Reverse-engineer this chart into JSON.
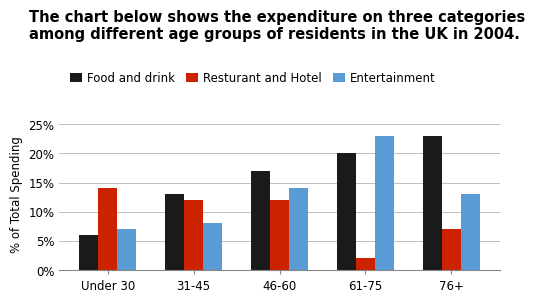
{
  "title_line1": "The chart below shows the expenditure on three categories",
  "title_line2": "among different age groups of residents in the UK in 2004.",
  "categories": [
    "Under 30",
    "31-45",
    "46-60",
    "61-75",
    "76+"
  ],
  "series": [
    {
      "label": "Food and drink",
      "color": "#1a1a1a",
      "values": [
        6,
        13,
        17,
        20,
        23
      ]
    },
    {
      "label": "Resturant and Hotel",
      "color": "#cc2200",
      "values": [
        14,
        12,
        12,
        2,
        7
      ]
    },
    {
      "label": "Entertainment",
      "color": "#5b9bd5",
      "values": [
        7,
        8,
        14,
        23,
        13
      ]
    }
  ],
  "ylabel": "% of Total Spending",
  "ylim": [
    0,
    26
  ],
  "yticks": [
    0,
    5,
    10,
    15,
    20,
    25
  ],
  "ytick_labels": [
    "0%",
    "5%",
    "10%",
    "15%",
    "20%",
    "25%"
  ],
  "background_color": "#ffffff",
  "title_fontsize": 10.5,
  "legend_fontsize": 8.5,
  "axis_fontsize": 8.5,
  "ylabel_fontsize": 8.5,
  "bar_width": 0.22,
  "grid_color": "#c0c0c0"
}
